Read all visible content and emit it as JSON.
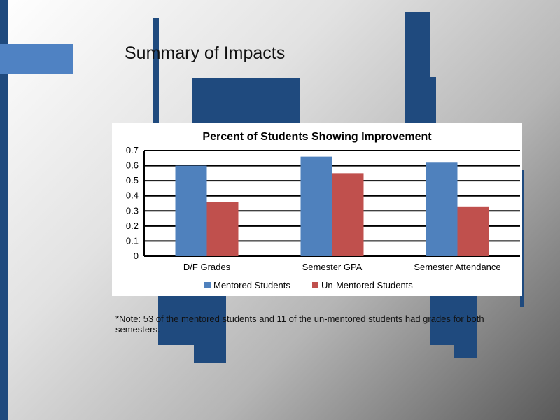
{
  "slide": {
    "title": "Summary of Impacts",
    "note": "*Note:  53 of the mentored students and 11 of the un-mentored students had grades for both semesters."
  },
  "colors": {
    "mentored": "#4f81bd",
    "unmentored": "#c0504d",
    "decoration": "#1f4a7e",
    "decoration_light": "#4f82c3"
  },
  "chart_data": {
    "type": "bar",
    "title": "Percent of Students Showing Improvement",
    "categories": [
      "D/F Grades",
      "Semester GPA",
      "Semester Attendance"
    ],
    "series": [
      {
        "name": "Mentored Students",
        "values": [
          0.6,
          0.66,
          0.62
        ]
      },
      {
        "name": "Un-Mentored Students",
        "values": [
          0.36,
          0.55,
          0.33
        ]
      }
    ],
    "ylim": [
      0,
      0.7
    ],
    "yticks": [
      0,
      0.1,
      0.2,
      0.3,
      0.4,
      0.5,
      0.6,
      0.7
    ],
    "grid": true,
    "legend": "bottom"
  }
}
